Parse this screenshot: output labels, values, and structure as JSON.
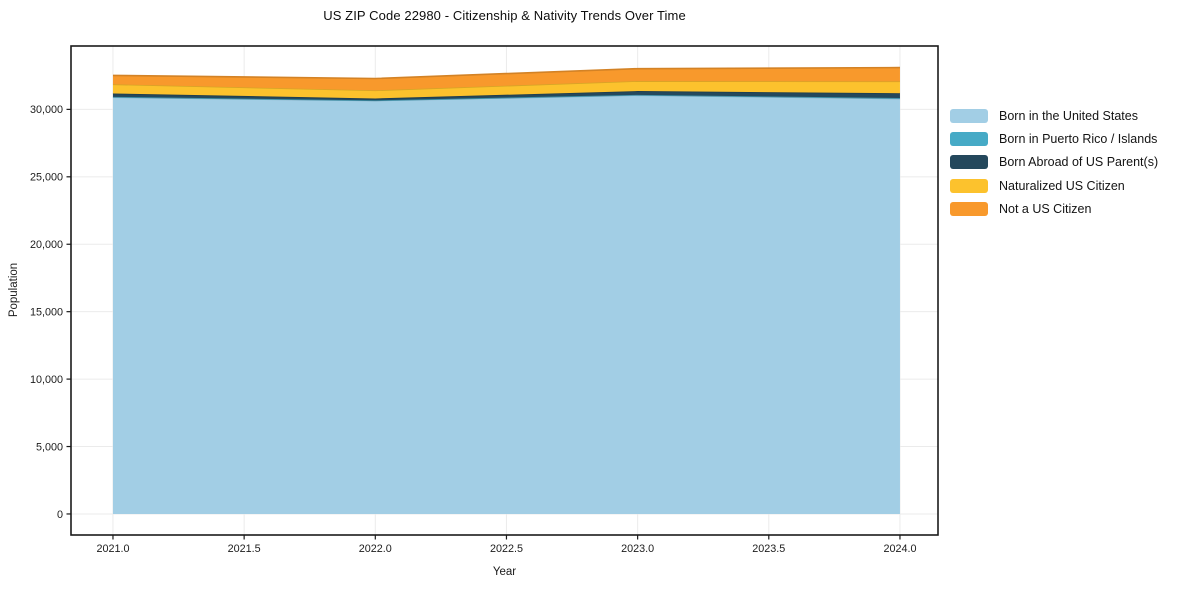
{
  "page": {
    "background": "#ffffff"
  },
  "chart": {
    "title": "US ZIP Code 22980 - Citizenship & Nativity Trends Over Time",
    "xlabel": "Year",
    "ylabel": "Population"
  },
  "chart_data": {
    "type": "area",
    "stacked": true,
    "title": "US ZIP Code 22980 - Citizenship & Nativity Trends Over Time",
    "xlabel": "Year",
    "ylabel": "Population",
    "x": [
      2021,
      2022,
      2023,
      2024
    ],
    "series": [
      {
        "name": "Born in the United States",
        "color": "#a2cee5",
        "values": [
          30900,
          30650,
          31050,
          30800
        ]
      },
      {
        "name": "Born in Puerto Rico / Islands",
        "color": "#46aac6",
        "values": [
          30,
          20,
          30,
          40
        ]
      },
      {
        "name": "Born Abroad of US Parent(s)",
        "color": "#24485c",
        "values": [
          250,
          140,
          280,
          360
        ]
      },
      {
        "name": "Naturalized US Citizen",
        "color": "#fcc22d",
        "values": [
          680,
          600,
          740,
          880
        ]
      },
      {
        "name": "Not a US Citizen",
        "color": "#f8992c",
        "values": [
          660,
          880,
          920,
          1020
        ]
      }
    ],
    "totals": [
      32520,
      32290,
      33020,
      33100
    ],
    "xlim": [
      2020.84,
      2024.145
    ],
    "ylim": [
      -1560,
      34700
    ],
    "xticks": {
      "values": [
        2021.0,
        2021.5,
        2022.0,
        2022.5,
        2023.0,
        2023.5,
        2024.0
      ],
      "labels": [
        "2021.0",
        "2021.5",
        "2022.0",
        "2022.5",
        "2023.0",
        "2023.5",
        "2024.0"
      ]
    },
    "yticks": {
      "values": [
        0,
        5000,
        10000,
        15000,
        20000,
        25000,
        30000
      ],
      "labels": [
        "0",
        "5,000",
        "10,000",
        "15,000",
        "20,000",
        "25,000",
        "30,000"
      ]
    },
    "grid": true,
    "grid_color": "#ebebeb",
    "spine_color": "#1a1a1a",
    "tick_text_color": "#1c1c1c",
    "legend_position": "right-outside"
  }
}
